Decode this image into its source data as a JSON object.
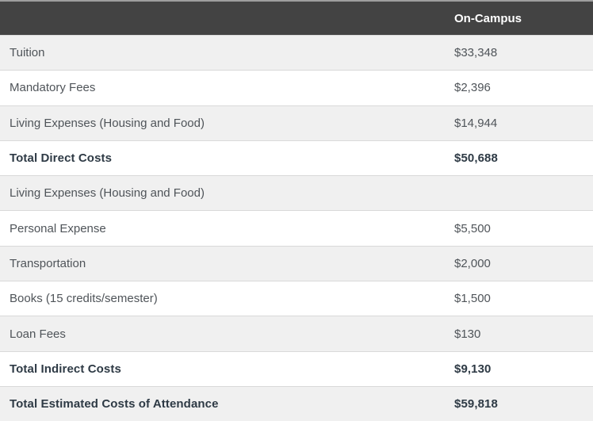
{
  "table": {
    "name": "estimated-costs-of-attendance",
    "header": {
      "label_col": "",
      "value_col": "On-Campus"
    },
    "rows": [
      {
        "label": "Tuition",
        "value": "$33,348",
        "bold": false
      },
      {
        "label": "Mandatory Fees",
        "value": "$2,396",
        "bold": false
      },
      {
        "label": "Living Expenses (Housing and Food)",
        "value": "$14,944",
        "bold": false
      },
      {
        "label": "Total Direct Costs",
        "value": "$50,688",
        "bold": true
      },
      {
        "label": "Living Expenses (Housing and Food)",
        "value": "",
        "bold": false
      },
      {
        "label": "Personal Expense",
        "value": "$5,500",
        "bold": false
      },
      {
        "label": "Transportation",
        "value": "$2,000",
        "bold": false
      },
      {
        "label": "Books (15 credits/semester)",
        "value": "$1,500",
        "bold": false
      },
      {
        "label": "Loan Fees",
        "value": "$130",
        "bold": false
      },
      {
        "label": "Total Indirect Costs",
        "value": "$9,130",
        "bold": true
      },
      {
        "label": "Total Estimated Costs of Attendance",
        "value": "$59,818",
        "bold": true
      }
    ],
    "colors": {
      "header_bg": "#434343",
      "header_text": "#ffffff",
      "row_bg": "#ffffff",
      "row_alt_bg": "#f0f0f0",
      "text": "#4f5459",
      "bold_text": "#2e3a45",
      "border": "#d9d9d9"
    }
  }
}
